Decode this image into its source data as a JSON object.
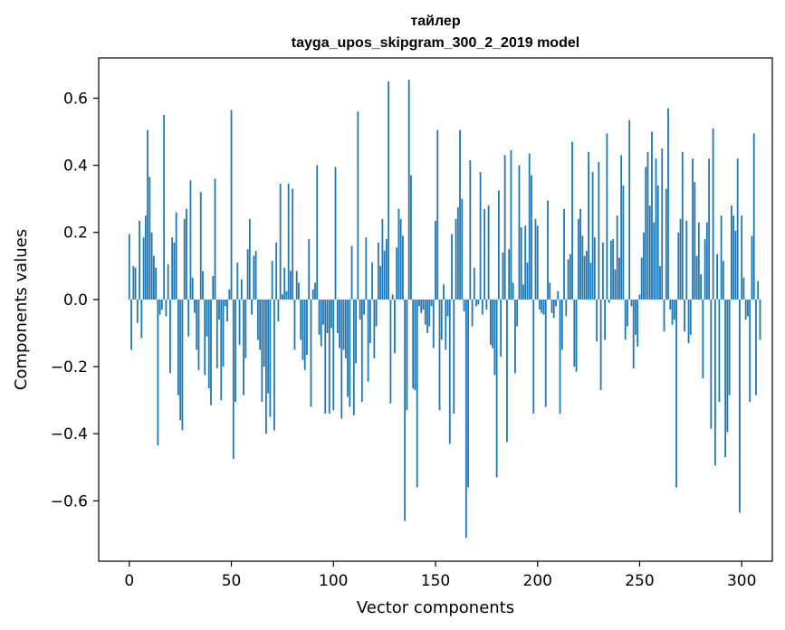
{
  "chart_data": {
    "type": "bar",
    "title": "тайлер",
    "subtitle": "tayga_upos_skipgram_300_2_2019 model",
    "xlabel": "Vector components",
    "ylabel": "Components values",
    "xlim": [
      -15,
      315
    ],
    "ylim": [
      -0.78,
      0.72
    ],
    "xticks": [
      0,
      50,
      100,
      150,
      200,
      250,
      300
    ],
    "yticks": [
      -0.6,
      -0.4,
      -0.2,
      0.0,
      0.2,
      0.4,
      0.6
    ],
    "ytick_labels": [
      "−0.6",
      "−0.4",
      "−0.2",
      "0.0",
      "0.2",
      "0.4",
      "0.6"
    ],
    "bar_color": "#1f77b4",
    "grid": false,
    "values": [
      0.195,
      -0.15,
      0.1,
      0.095,
      -0.07,
      0.235,
      -0.115,
      0.185,
      0.25,
      0.505,
      0.365,
      0.2,
      0.13,
      0.095,
      -0.435,
      -0.045,
      -0.03,
      0.55,
      -0.05,
      0.105,
      -0.22,
      0.185,
      0.17,
      0.26,
      -0.285,
      -0.36,
      -0.39,
      0.24,
      0.27,
      -0.11,
      0.355,
      0.065,
      -0.04,
      -0.15,
      -0.21,
      0.32,
      0.085,
      -0.225,
      -0.11,
      -0.265,
      -0.315,
      0.07,
      0.36,
      -0.205,
      -0.06,
      -0.3,
      -0.2,
      -0.02,
      -0.065,
      0.03,
      0.565,
      -0.475,
      -0.305,
      0.11,
      -0.135,
      0.06,
      -0.285,
      -0.175,
      0.15,
      0.24,
      -0.045,
      0.13,
      0.145,
      -0.12,
      -0.15,
      -0.305,
      -0.2,
      -0.4,
      -0.28,
      -0.35,
      0.115,
      -0.39,
      0.17,
      -0.065,
      0.345,
      0.015,
      0.095,
      0.025,
      0.345,
      0.085,
      0.33,
      -0.15,
      0.085,
      0.05,
      -0.12,
      -0.18,
      -0.21,
      -0.165,
      0.18,
      -0.32,
      0.03,
      0.05,
      0.4,
      -0.105,
      -0.14,
      -0.075,
      -0.34,
      -0.1,
      -0.34,
      -0.085,
      -0.33,
      0.395,
      -0.1,
      -0.145,
      -0.355,
      -0.15,
      -0.175,
      -0.29,
      -0.32,
      0.16,
      -0.345,
      -0.19,
      0.56,
      -0.06,
      -0.305,
      -0.045,
      0.185,
      -0.245,
      -0.13,
      0.11,
      -0.175,
      -0.08,
      0.17,
      0.1,
      0.24,
      0.145,
      0.18,
      0.65,
      -0.31,
      0.015,
      -0.16,
      0.155,
      0.27,
      0.24,
      0.19,
      -0.66,
      -0.33,
      0.655,
      0.37,
      -0.265,
      -0.27,
      -0.56,
      -0.02,
      -0.04,
      -0.03,
      -0.075,
      -0.1,
      -0.08,
      -0.02,
      -0.145,
      0.235,
      0.505,
      -0.33,
      -0.12,
      0.045,
      -0.15,
      -0.05,
      -0.43,
      0.195,
      -0.34,
      0.24,
      0.275,
      0.505,
      0.3,
      -0.035,
      -0.71,
      -0.56,
      0.415,
      -0.08,
      0.095,
      -0.02,
      -0.015,
      0.38,
      -0.045,
      0.27,
      -0.03,
      0.28,
      -0.135,
      -0.145,
      -0.225,
      -0.53,
      0.325,
      -0.17,
      0.14,
      0.43,
      -0.425,
      0.15,
      0.445,
      0.05,
      -0.22,
      -0.08,
      0.4,
      0.215,
      0.045,
      0.22,
      0.11,
      0.435,
      0.37,
      -0.34,
      0.24,
      0.22,
      -0.03,
      -0.04,
      -0.045,
      -0.32,
      0.295,
      0.05,
      -0.04,
      -0.055,
      -0.02,
      0.025,
      -0.34,
      -0.15,
      0.27,
      -0.05,
      0.12,
      0.135,
      0.47,
      -0.2,
      -0.215,
      0.24,
      0.27,
      0.19,
      0.13,
      0.145,
      0.44,
      0.11,
      0.38,
      0.185,
      -0.125,
      0.41,
      -0.27,
      0.17,
      -0.12,
      0.495,
      -0.01,
      0.175,
      0.18,
      0.09,
      0.25,
      0.125,
      0.43,
      0.34,
      -0.12,
      -0.08,
      0.535,
      -0.02,
      -0.205,
      -0.105,
      -0.14,
      0.015,
      0.125,
      0.2,
      0.395,
      0.44,
      0.28,
      0.5,
      0.23,
      0.42,
      0.34,
      0.1,
      0.45,
      -0.095,
      0.33,
      0.57,
      -0.03,
      -0.075,
      -0.06,
      -0.56,
      0.2,
      0.24,
      0.44,
      -0.095,
      0.235,
      -0.13,
      -0.105,
      0.42,
      0.35,
      0.13,
      0.23,
      0.075,
      -0.235,
      0.18,
      0.23,
      0.42,
      -0.385,
      0.51,
      -0.495,
      0.135,
      -0.305,
      0.25,
      0.115,
      -0.47,
      -0.395,
      -0.285,
      0.28,
      0.25,
      0.205,
      0.42,
      -0.635,
      0.25,
      0.065,
      -0.06,
      -0.05,
      -0.305,
      0.19,
      0.495,
      -0.285,
      0.055,
      -0.12,
      0.0
    ]
  }
}
